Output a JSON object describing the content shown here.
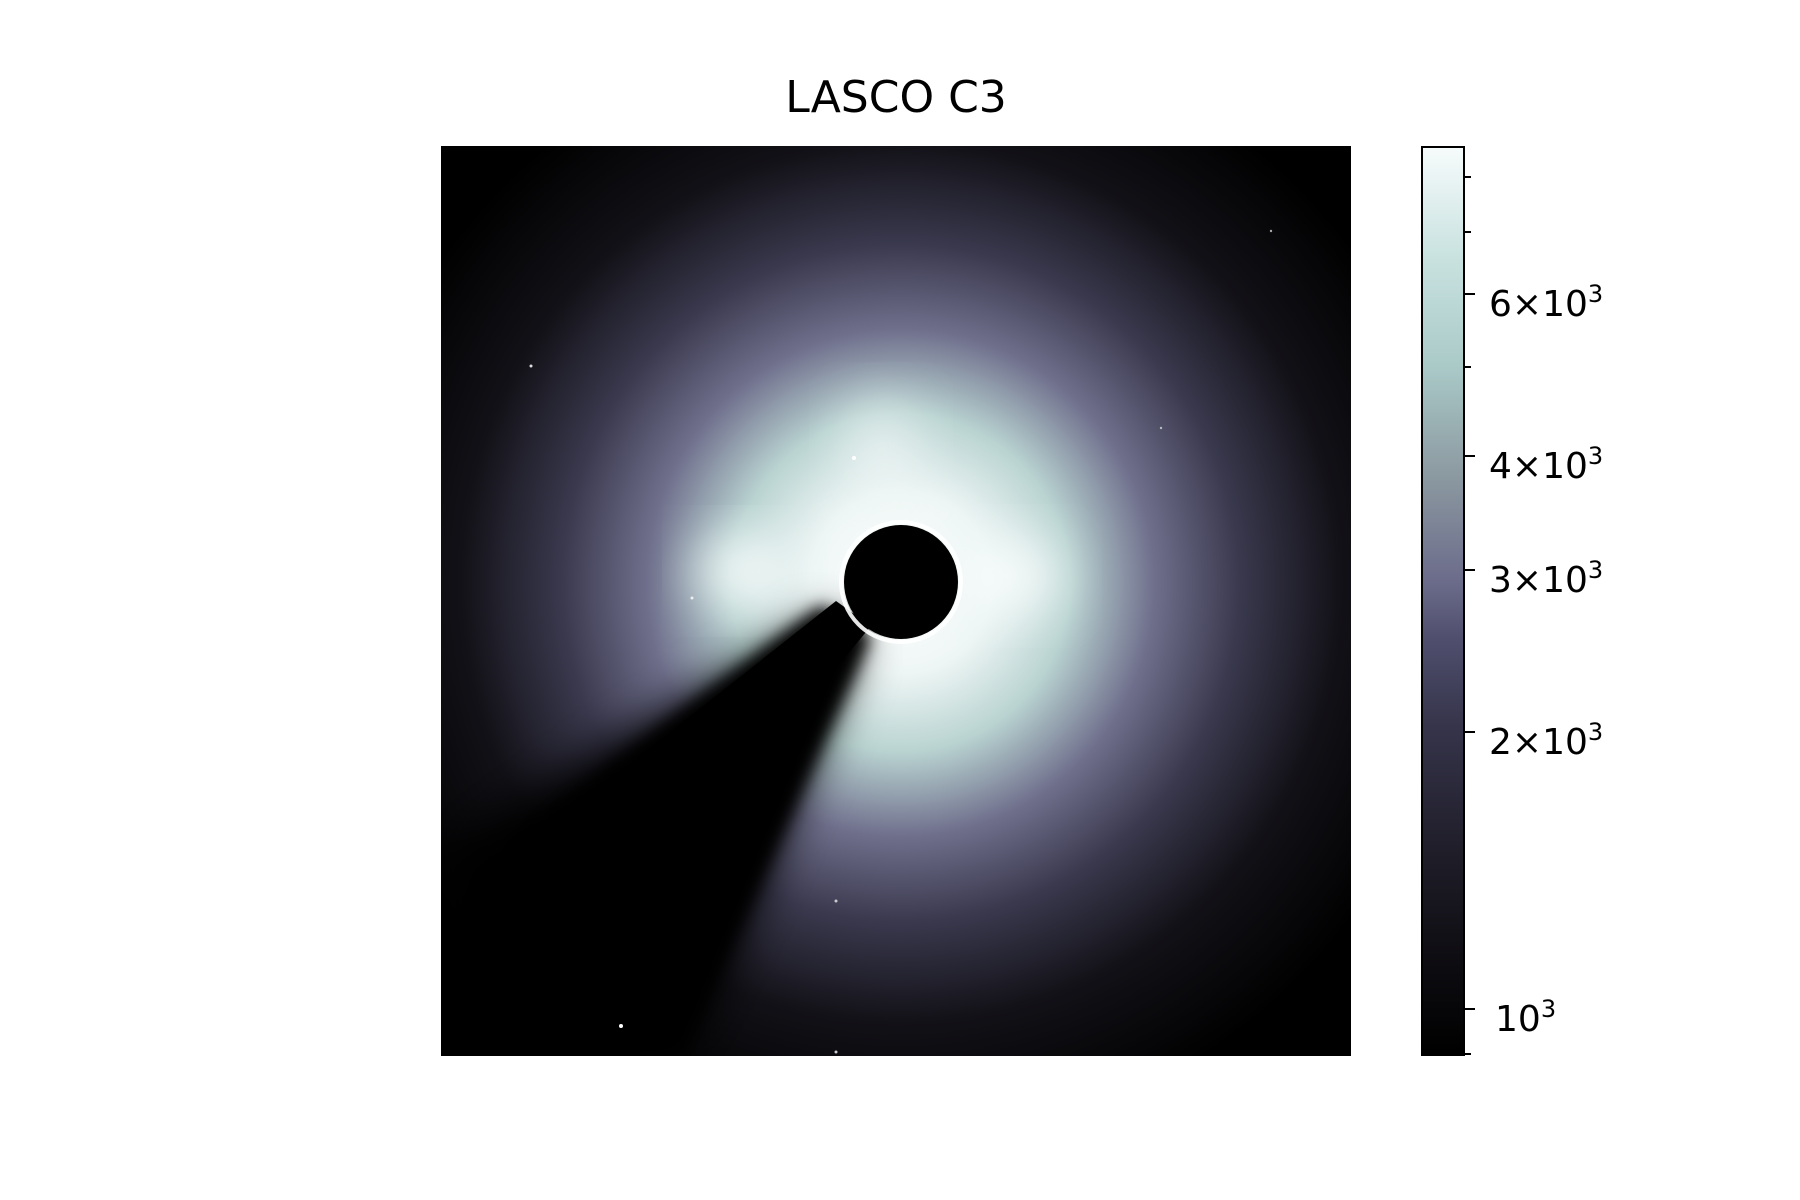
{
  "title": "LASCO C3",
  "colorbar": {
    "scale": "log",
    "colormap": "bone",
    "major_ticks": [
      {
        "value": 6000,
        "mantissa": "6",
        "times": "×",
        "base": "10",
        "exp": "3"
      },
      {
        "value": 4000,
        "mantissa": "4",
        "times": "×",
        "base": "10",
        "exp": "3"
      },
      {
        "value": 3000,
        "mantissa": "3",
        "times": "×",
        "base": "10",
        "exp": "3"
      },
      {
        "value": 2000,
        "mantissa": "2",
        "times": "×",
        "base": "10",
        "exp": "3"
      },
      {
        "value": 1000,
        "mantissa": "",
        "times": "",
        "base": "10",
        "exp": "3"
      }
    ]
  }
}
